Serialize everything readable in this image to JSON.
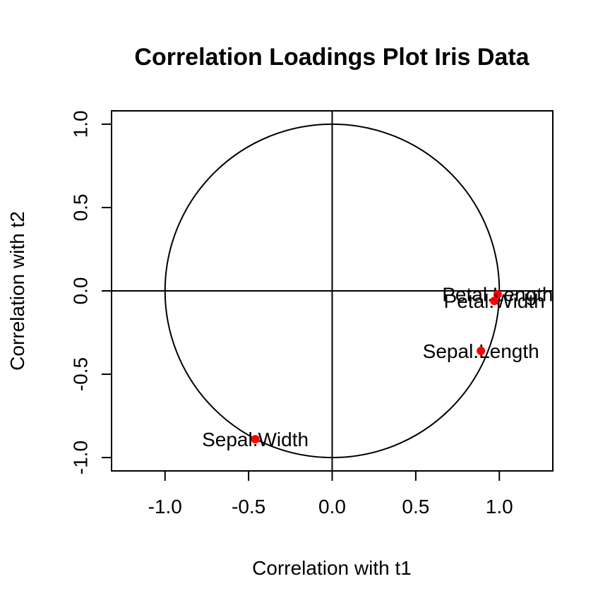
{
  "chart_data": {
    "type": "scatter",
    "title": "Correlation Loadings Plot Iris Data",
    "xlabel": "Correlation with t1",
    "ylabel": "Correlation with t2",
    "xlim": [
      -1.32,
      1.32
    ],
    "ylim": [
      -1.08,
      1.08
    ],
    "xticks": [
      {
        "value": -1.0,
        "label": "-1.0"
      },
      {
        "value": -0.5,
        "label": "-0.5"
      },
      {
        "value": 0.0,
        "label": "0.0"
      },
      {
        "value": 0.5,
        "label": "0.5"
      },
      {
        "value": 1.0,
        "label": "1.0"
      }
    ],
    "yticks": [
      {
        "value": -1.0,
        "label": "-1.0"
      },
      {
        "value": -0.5,
        "label": "-0.5"
      },
      {
        "value": 0.0,
        "label": "0.0"
      },
      {
        "value": 0.5,
        "label": "0.5"
      },
      {
        "value": 1.0,
        "label": "1.0"
      }
    ],
    "unit_circle": true,
    "reference_lines": {
      "x": 0,
      "y": 0
    },
    "grid": false,
    "point_color": "#ff0000",
    "points": [
      {
        "label": "Sepal.Length",
        "x": 0.89,
        "y": -0.36
      },
      {
        "label": "Sepal.Width",
        "x": -0.46,
        "y": -0.89
      },
      {
        "label": "Petal.Length",
        "x": 0.99,
        "y": -0.02
      },
      {
        "label": "Petal.Width",
        "x": 0.97,
        "y": -0.06
      }
    ]
  }
}
